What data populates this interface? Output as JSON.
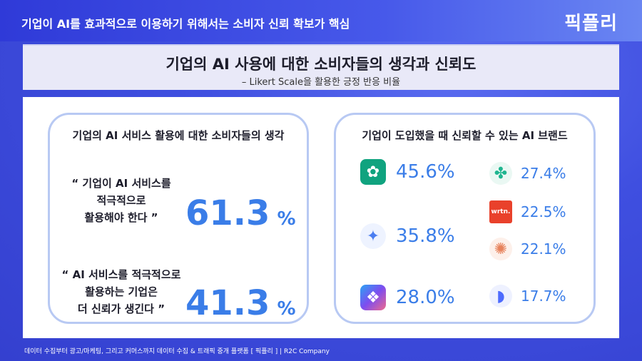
{
  "header": {
    "title": "기업이 AI를 효과적으로 이용하기 위해서는 소비자 신뢰 확보가 핵심",
    "brand": "픽플리"
  },
  "subheader": {
    "title": "기업의 AI 사용에 대한 소비자들의 생각과 신뢰도",
    "subtitle": "– Likert Scale을 활용한 긍정 반응 비율"
  },
  "left_card": {
    "title": "기업의 AI 서비스 활용에 대한 소비자들의 생각",
    "items": [
      {
        "quote_lines": [
          "“ 기업이 AI 서비스를",
          "적극적으로",
          "활용해야 한다 ”"
        ],
        "value": "61.3",
        "unit": "%"
      },
      {
        "quote_lines": [
          "“ AI 서비스를 적극적으로",
          "활용하는 기업은",
          "더 신뢰가 생긴다 ”"
        ],
        "value": "41.3",
        "unit": "%"
      }
    ]
  },
  "right_card": {
    "title": "기업이 도입했을 때 신뢰할 수 있는 AI 브랜드",
    "brands": [
      {
        "logo": "chatgpt-logo",
        "color": "#10a37f",
        "glyph": "✿",
        "value": "45.6%"
      },
      {
        "logo": "gemini-logo",
        "color": "#4a7df0",
        "glyph": "✦",
        "value": "35.8%"
      },
      {
        "logo": "copilot-logo",
        "color": "#6a5cf0",
        "glyph": "❖",
        "value": "28.0%"
      },
      {
        "logo": "perplexity-style-logo",
        "color": "#1fb58f",
        "glyph": "✤",
        "value": "27.4%"
      },
      {
        "logo": "wrtn-logo",
        "color": "#e9412b",
        "glyph": "wrtn.",
        "value": "22.5%"
      },
      {
        "logo": "claude-logo",
        "color": "#e7815a",
        "glyph": "✺",
        "value": "22.1%"
      },
      {
        "logo": "deepseek-logo",
        "color": "#4d6bfe",
        "glyph": "◗",
        "value": "17.7%"
      }
    ]
  },
  "footer": {
    "text": "데이터 수집부터 광고/마케팅, 그리고 커머스까지 데이터 수집 & 트래픽 중개 플랫폼 [ 픽플리 ]  |  R2C Company"
  }
}
